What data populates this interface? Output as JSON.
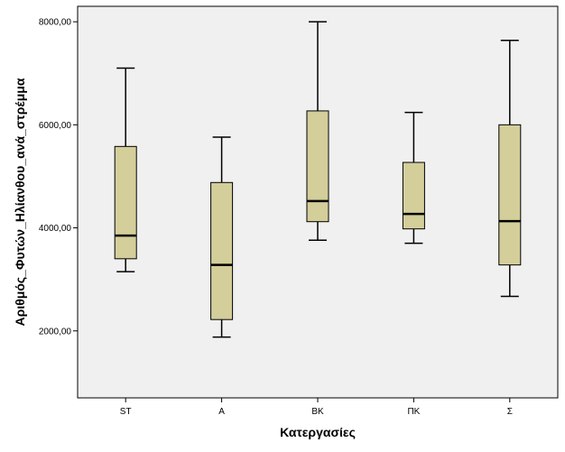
{
  "chart_data": {
    "type": "boxplot",
    "xlabel": "Κατεργασίες",
    "ylabel": "Αριθμός_Φυτών_Ηλίανθου_ανά_στρέμμα",
    "ylim": [
      700,
      8300
    ],
    "yticks": [
      {
        "value": 2000,
        "label": "2000,00"
      },
      {
        "value": 4000,
        "label": "4000,00"
      },
      {
        "value": 6000,
        "label": "6000,00"
      },
      {
        "value": 8000,
        "label": "8000,00"
      }
    ],
    "grid": false,
    "box_color": "#d3ce9a",
    "plot_bg": "#f0f0f0",
    "categories": [
      "ST",
      "A",
      "BK",
      "ΠΚ",
      "Σ"
    ],
    "boxes": [
      {
        "category": "ST",
        "min": 3150,
        "q1": 3400,
        "median": 3850,
        "q3": 5580,
        "max": 7100
      },
      {
        "category": "A",
        "min": 1880,
        "q1": 2220,
        "median": 3280,
        "q3": 4880,
        "max": 5760
      },
      {
        "category": "BK",
        "min": 3760,
        "q1": 4120,
        "median": 4520,
        "q3": 6270,
        "max": 8000
      },
      {
        "category": "ΠΚ",
        "min": 3700,
        "q1": 3980,
        "median": 4270,
        "q3": 5270,
        "max": 6240
      },
      {
        "category": "Σ",
        "min": 2670,
        "q1": 3280,
        "median": 4130,
        "q3": 6000,
        "max": 7640
      }
    ]
  }
}
